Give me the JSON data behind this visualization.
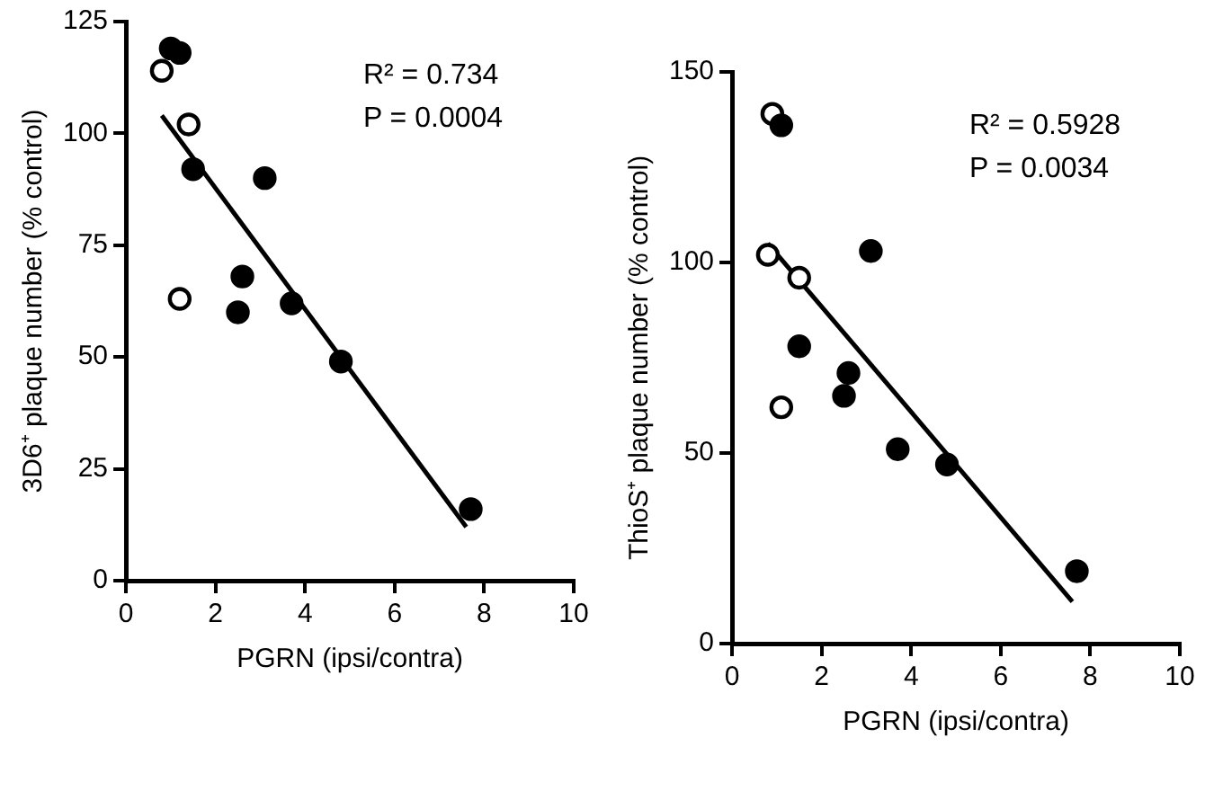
{
  "chart_data": [
    {
      "type": "scatter",
      "xlabel": "PGRN (ipsi/contra)",
      "ylabel": "3D6⁺ plaque number (% control)",
      "annotations": [
        "R² = 0.734",
        "P = 0.0004"
      ],
      "xlim": [
        0,
        10
      ],
      "xticks": [
        0,
        2,
        4,
        6,
        8,
        10
      ],
      "ylim": [
        0,
        125
      ],
      "yticks": [
        0,
        25,
        50,
        75,
        100,
        125
      ],
      "legend": false,
      "marker": "circle",
      "series": [
        {
          "color": "#000000",
          "x": [
            1.0,
            1.2,
            1.5,
            3.1,
            2.6,
            2.5,
            3.7,
            4.8,
            7.7
          ],
          "values": [
            119,
            118,
            92,
            90,
            68,
            60,
            62,
            49,
            16
          ]
        },
        {
          "color": "#ffffff",
          "x": [
            0.8,
            1.4,
            1.2
          ],
          "values": [
            114,
            102,
            63
          ]
        },
        {
          "type": "line",
          "color": "#000000",
          "marker": "none",
          "x": [
            0.8,
            7.6
          ],
          "values": [
            104,
            12
          ]
        }
      ]
    },
    {
      "type": "scatter",
      "xlabel": "PGRN (ipsi/contra)",
      "ylabel": "ThioS⁺ plaque number (% control)",
      "annotations": [
        "R² = 0.5928",
        "P = 0.0034"
      ],
      "xlim": [
        0,
        10
      ],
      "xticks": [
        0,
        2,
        4,
        6,
        8,
        10
      ],
      "ylim": [
        0,
        150
      ],
      "yticks": [
        0,
        50,
        100,
        150
      ],
      "legend": false,
      "marker": "circle",
      "series": [
        {
          "color": "#000000",
          "x": [
            1.1,
            3.1,
            1.5,
            2.6,
            2.5,
            3.7,
            4.8,
            7.7
          ],
          "values": [
            136,
            103,
            78,
            71,
            65,
            51,
            47,
            19
          ]
        },
        {
          "color": "#ffffff",
          "x": [
            0.9,
            0.8,
            1.5,
            1.1
          ],
          "values": [
            139,
            102,
            96,
            62
          ]
        },
        {
          "type": "line",
          "color": "#000000",
          "marker": "none",
          "x": [
            0.8,
            7.6
          ],
          "values": [
            105,
            11
          ]
        }
      ]
    }
  ]
}
